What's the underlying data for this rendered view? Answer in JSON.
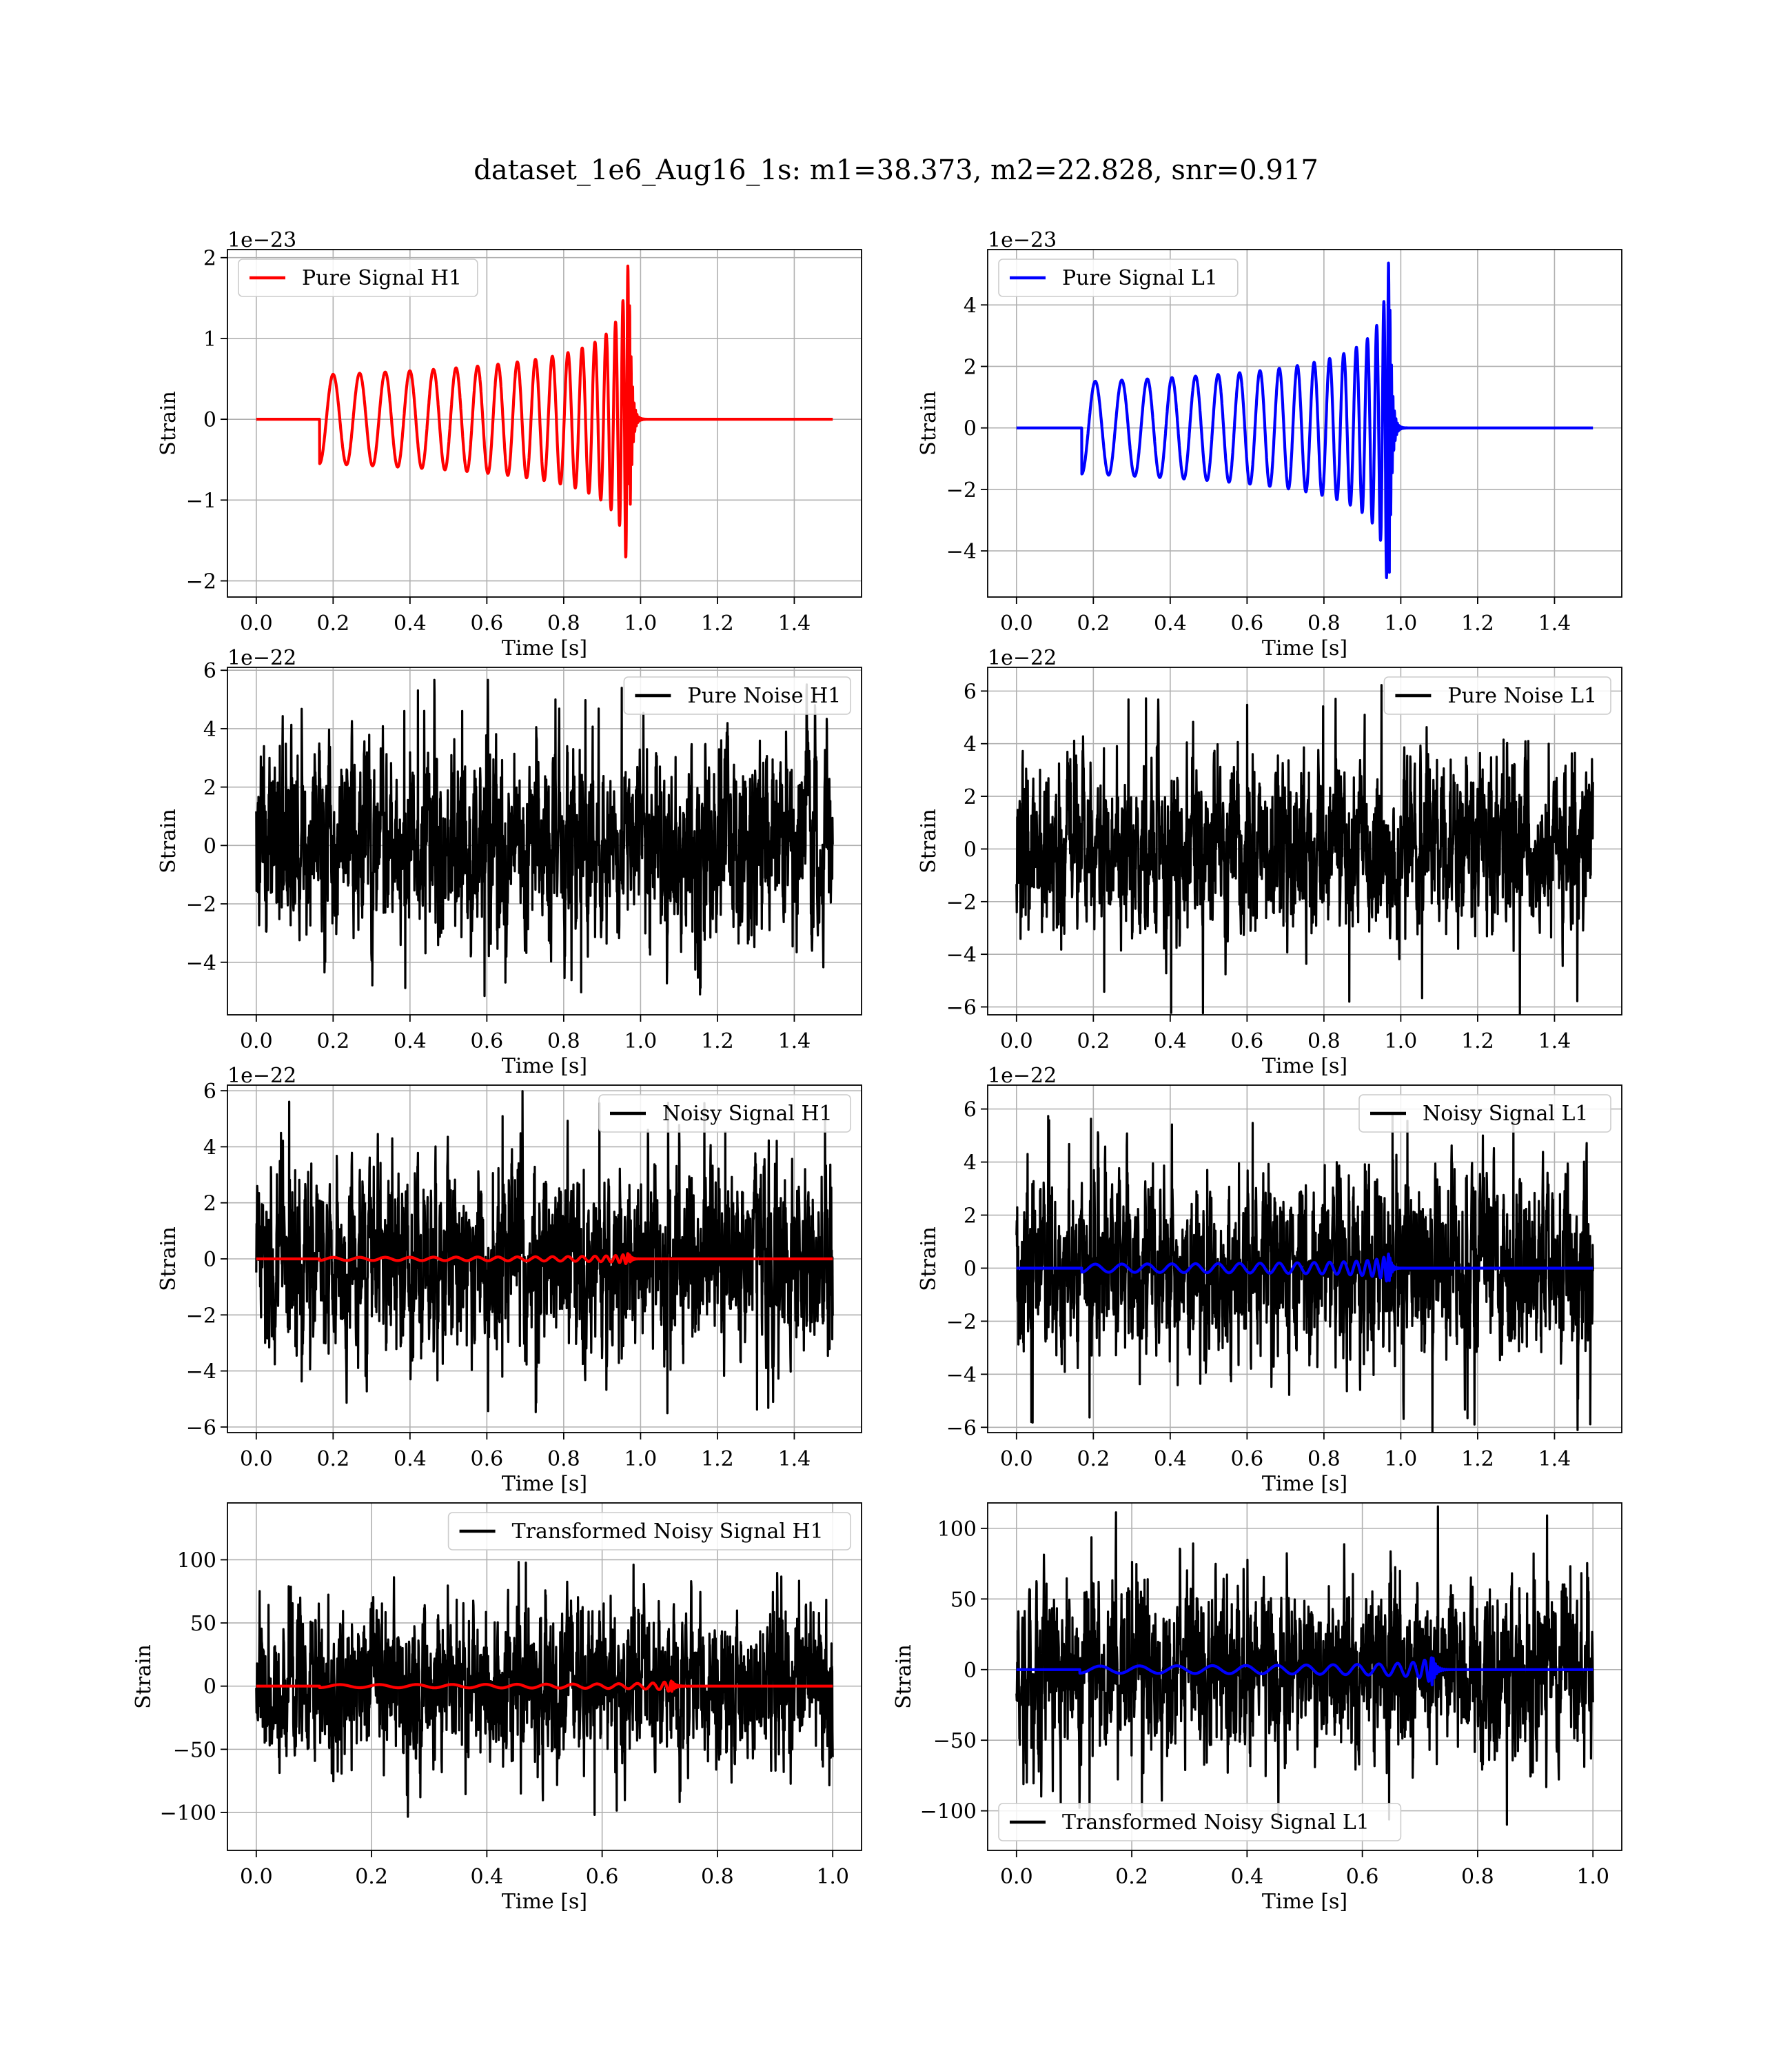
{
  "figure": {
    "title": "dataset_1e6_Aug16_1s: m1=38.373, m2=22.828, snr=0.917"
  },
  "chart_data": [
    {
      "type": "line",
      "id": "pure-signal-h1",
      "xlabel": "Time [s]",
      "ylabel": "Strain",
      "offset_text": "1e−23",
      "xlim": [
        -0.075,
        1.575
      ],
      "ylim": [
        -2.2,
        2.1
      ],
      "xticks": [
        0.0,
        0.2,
        0.4,
        0.6,
        0.8,
        1.0,
        1.2,
        1.4
      ],
      "yticks": [
        -2,
        -1,
        0,
        1,
        2
      ],
      "grid": true,
      "legend_position": "upper-left",
      "series": [
        {
          "name": "Pure Signal H1",
          "color": "#ff0000",
          "kind": "chirp",
          "amp": 0.55,
          "peak": 1.9,
          "start": 0.165,
          "merge": 0.97,
          "duration": 1.5
        }
      ]
    },
    {
      "type": "line",
      "id": "pure-signal-l1",
      "xlabel": "Time [s]",
      "ylabel": "Strain",
      "offset_text": "1e−23",
      "xlim": [
        -0.075,
        1.575
      ],
      "ylim": [
        -5.5,
        5.8
      ],
      "xticks": [
        0.0,
        0.2,
        0.4,
        0.6,
        0.8,
        1.0,
        1.2,
        1.4
      ],
      "yticks": [
        -4,
        -2,
        0,
        2,
        4
      ],
      "grid": true,
      "legend_position": "upper-left",
      "series": [
        {
          "name": "Pure Signal L1",
          "color": "#0000ff",
          "kind": "chirp",
          "amp": 1.5,
          "peak": 5.4,
          "start": 0.17,
          "merge": 0.97,
          "duration": 1.5
        }
      ]
    },
    {
      "type": "line",
      "id": "pure-noise-h1",
      "xlabel": "Time [s]",
      "ylabel": "Strain",
      "offset_text": "1e−22",
      "xlim": [
        -0.075,
        1.575
      ],
      "ylim": [
        -5.8,
        6.1
      ],
      "xticks": [
        0.0,
        0.2,
        0.4,
        0.6,
        0.8,
        1.0,
        1.2,
        1.4
      ],
      "yticks": [
        -4,
        -2,
        0,
        2,
        4,
        6
      ],
      "grid": true,
      "legend_position": "upper-right",
      "series": [
        {
          "name": "Pure Noise H1",
          "color": "#000000",
          "kind": "noise",
          "sigma": 1.55,
          "peak": 5.4,
          "duration": 1.5
        }
      ]
    },
    {
      "type": "line",
      "id": "pure-noise-l1",
      "xlabel": "Time [s]",
      "ylabel": "Strain",
      "offset_text": "1e−22",
      "xlim": [
        -0.075,
        1.575
      ],
      "ylim": [
        -6.3,
        6.9
      ],
      "xticks": [
        0.0,
        0.2,
        0.4,
        0.6,
        0.8,
        1.0,
        1.2,
        1.4
      ],
      "yticks": [
        -6,
        -4,
        -2,
        0,
        2,
        4,
        6
      ],
      "grid": true,
      "legend_position": "upper-right",
      "series": [
        {
          "name": "Pure Noise L1",
          "color": "#000000",
          "kind": "noise",
          "sigma": 1.6,
          "peak": 6.3,
          "duration": 1.5
        }
      ]
    },
    {
      "type": "line",
      "id": "noisy-signal-h1",
      "xlabel": "Time [s]",
      "ylabel": "Strain",
      "offset_text": "1e−22",
      "xlim": [
        -0.075,
        1.575
      ],
      "ylim": [
        -6.2,
        6.2
      ],
      "xticks": [
        0.0,
        0.2,
        0.4,
        0.6,
        0.8,
        1.0,
        1.2,
        1.4
      ],
      "yticks": [
        -6,
        -4,
        -2,
        0,
        2,
        4,
        6
      ],
      "grid": true,
      "legend_position": "upper-right",
      "series": [
        {
          "name": "Noisy Signal H1",
          "color": "#000000",
          "kind": "noise",
          "sigma": 1.6,
          "peak": 5.7,
          "duration": 1.5
        },
        {
          "name": "",
          "color": "#ff0000",
          "kind": "chirp",
          "amp": 0.055,
          "peak": 0.19,
          "start": 0.165,
          "merge": 0.97,
          "duration": 1.5
        }
      ]
    },
    {
      "type": "line",
      "id": "noisy-signal-l1",
      "xlabel": "Time [s]",
      "ylabel": "Strain",
      "offset_text": "1e−22",
      "xlim": [
        -0.075,
        1.575
      ],
      "ylim": [
        -6.2,
        6.9
      ],
      "xticks": [
        0.0,
        0.2,
        0.4,
        0.6,
        0.8,
        1.0,
        1.2,
        1.4
      ],
      "yticks": [
        -6,
        -4,
        -2,
        0,
        2,
        4,
        6
      ],
      "grid": true,
      "legend_position": "upper-right",
      "series": [
        {
          "name": "Noisy Signal L1",
          "color": "#000000",
          "kind": "noise",
          "sigma": 1.6,
          "peak": 6.3,
          "duration": 1.5
        },
        {
          "name": "",
          "color": "#0000ff",
          "kind": "chirp",
          "amp": 0.15,
          "peak": 0.54,
          "start": 0.17,
          "merge": 0.97,
          "duration": 1.5
        }
      ]
    },
    {
      "type": "line",
      "id": "transformed-noisy-signal-h1",
      "xlabel": "Time [s]",
      "ylabel": "Strain",
      "offset_text": "",
      "xlim": [
        -0.05,
        1.05
      ],
      "ylim": [
        -130,
        145
      ],
      "xticks": [
        0.0,
        0.2,
        0.4,
        0.6,
        0.8,
        1.0
      ],
      "yticks": [
        -100,
        -50,
        0,
        50,
        100
      ],
      "grid": true,
      "legend_position": "upper-right",
      "series": [
        {
          "name": "Transformed Noisy Signal H1",
          "color": "#000000",
          "kind": "noise",
          "sigma": 30,
          "peak": 105,
          "duration": 1.0
        },
        {
          "name": "",
          "color": "#ff0000",
          "kind": "chirp",
          "amp": 1.2,
          "peak": 5,
          "start": 0.11,
          "merge": 0.72,
          "duration": 1.0
        }
      ]
    },
    {
      "type": "line",
      "id": "transformed-noisy-signal-l1",
      "xlabel": "Time [s]",
      "ylabel": "Strain",
      "offset_text": "",
      "xlim": [
        -0.05,
        1.05
      ],
      "ylim": [
        -128,
        118
      ],
      "xticks": [
        0.0,
        0.2,
        0.4,
        0.6,
        0.8,
        1.0
      ],
      "yticks": [
        -100,
        -50,
        0,
        50,
        100
      ],
      "grid": true,
      "legend_position": "lower-left",
      "series": [
        {
          "name": "Transformed Noisy Signal L1",
          "color": "#000000",
          "kind": "noise",
          "sigma": 30,
          "peak": 110,
          "duration": 1.0
        },
        {
          "name": "",
          "color": "#0000ff",
          "kind": "chirp",
          "amp": 2.5,
          "peak": 13,
          "start": 0.11,
          "merge": 0.72,
          "duration": 1.0
        }
      ]
    }
  ]
}
